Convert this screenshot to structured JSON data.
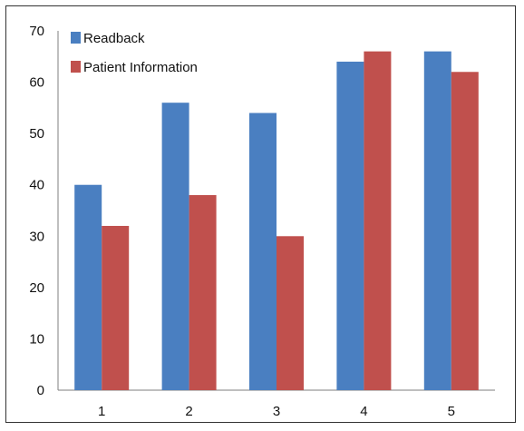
{
  "chart_data": {
    "type": "bar",
    "title": "",
    "xlabel": "",
    "ylabel": "",
    "categories": [
      "1",
      "2",
      "3",
      "4",
      "5"
    ],
    "series": [
      {
        "name": "Readback",
        "values": [
          40,
          56,
          54,
          64,
          66
        ],
        "color": "#4a7fc1"
      },
      {
        "name": "Patient Information",
        "values": [
          32,
          38,
          30,
          66,
          62
        ],
        "color": "#c0504d"
      }
    ],
    "ylim": [
      0,
      70
    ],
    "yticks": [
      "0",
      "10",
      "20",
      "30",
      "40",
      "50",
      "60",
      "70"
    ],
    "grid": false,
    "legend_position": "top-left"
  }
}
